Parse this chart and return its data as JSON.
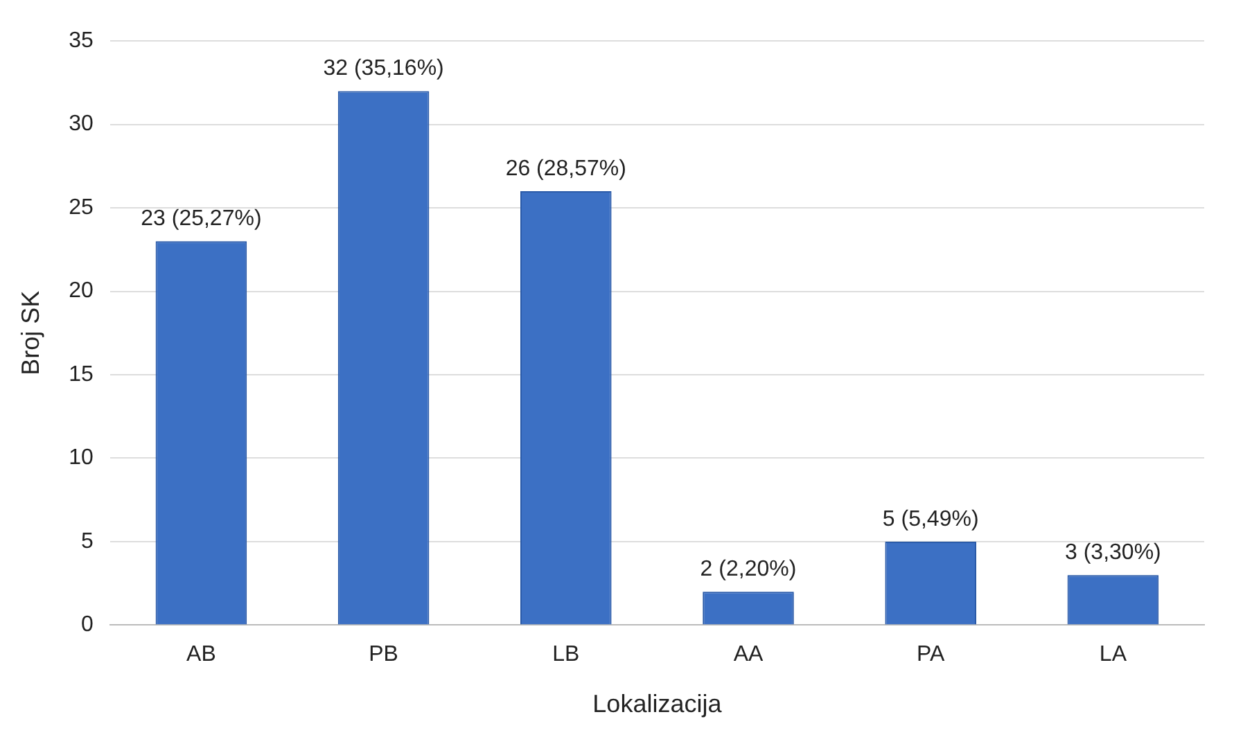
{
  "chart_data": {
    "type": "bar",
    "xlabel": "Lokalizacija",
    "ylabel": "Broj SK",
    "categories": [
      "AB",
      "PB",
      "LB",
      "AA",
      "PA",
      "LA"
    ],
    "values": [
      23,
      32,
      26,
      2,
      5,
      3
    ],
    "value_labels": [
      "23 (25,27%)",
      "32 (35,16%)",
      "26 (28,57%)",
      "2 (2,20%)",
      "5 (5,49%)",
      "3 (3,30%)"
    ],
    "color": "#3c70c4",
    "ylim": [
      0,
      35
    ],
    "yticks": [
      0,
      5,
      10,
      15,
      20,
      25,
      30,
      35
    ],
    "grid": "y"
  }
}
